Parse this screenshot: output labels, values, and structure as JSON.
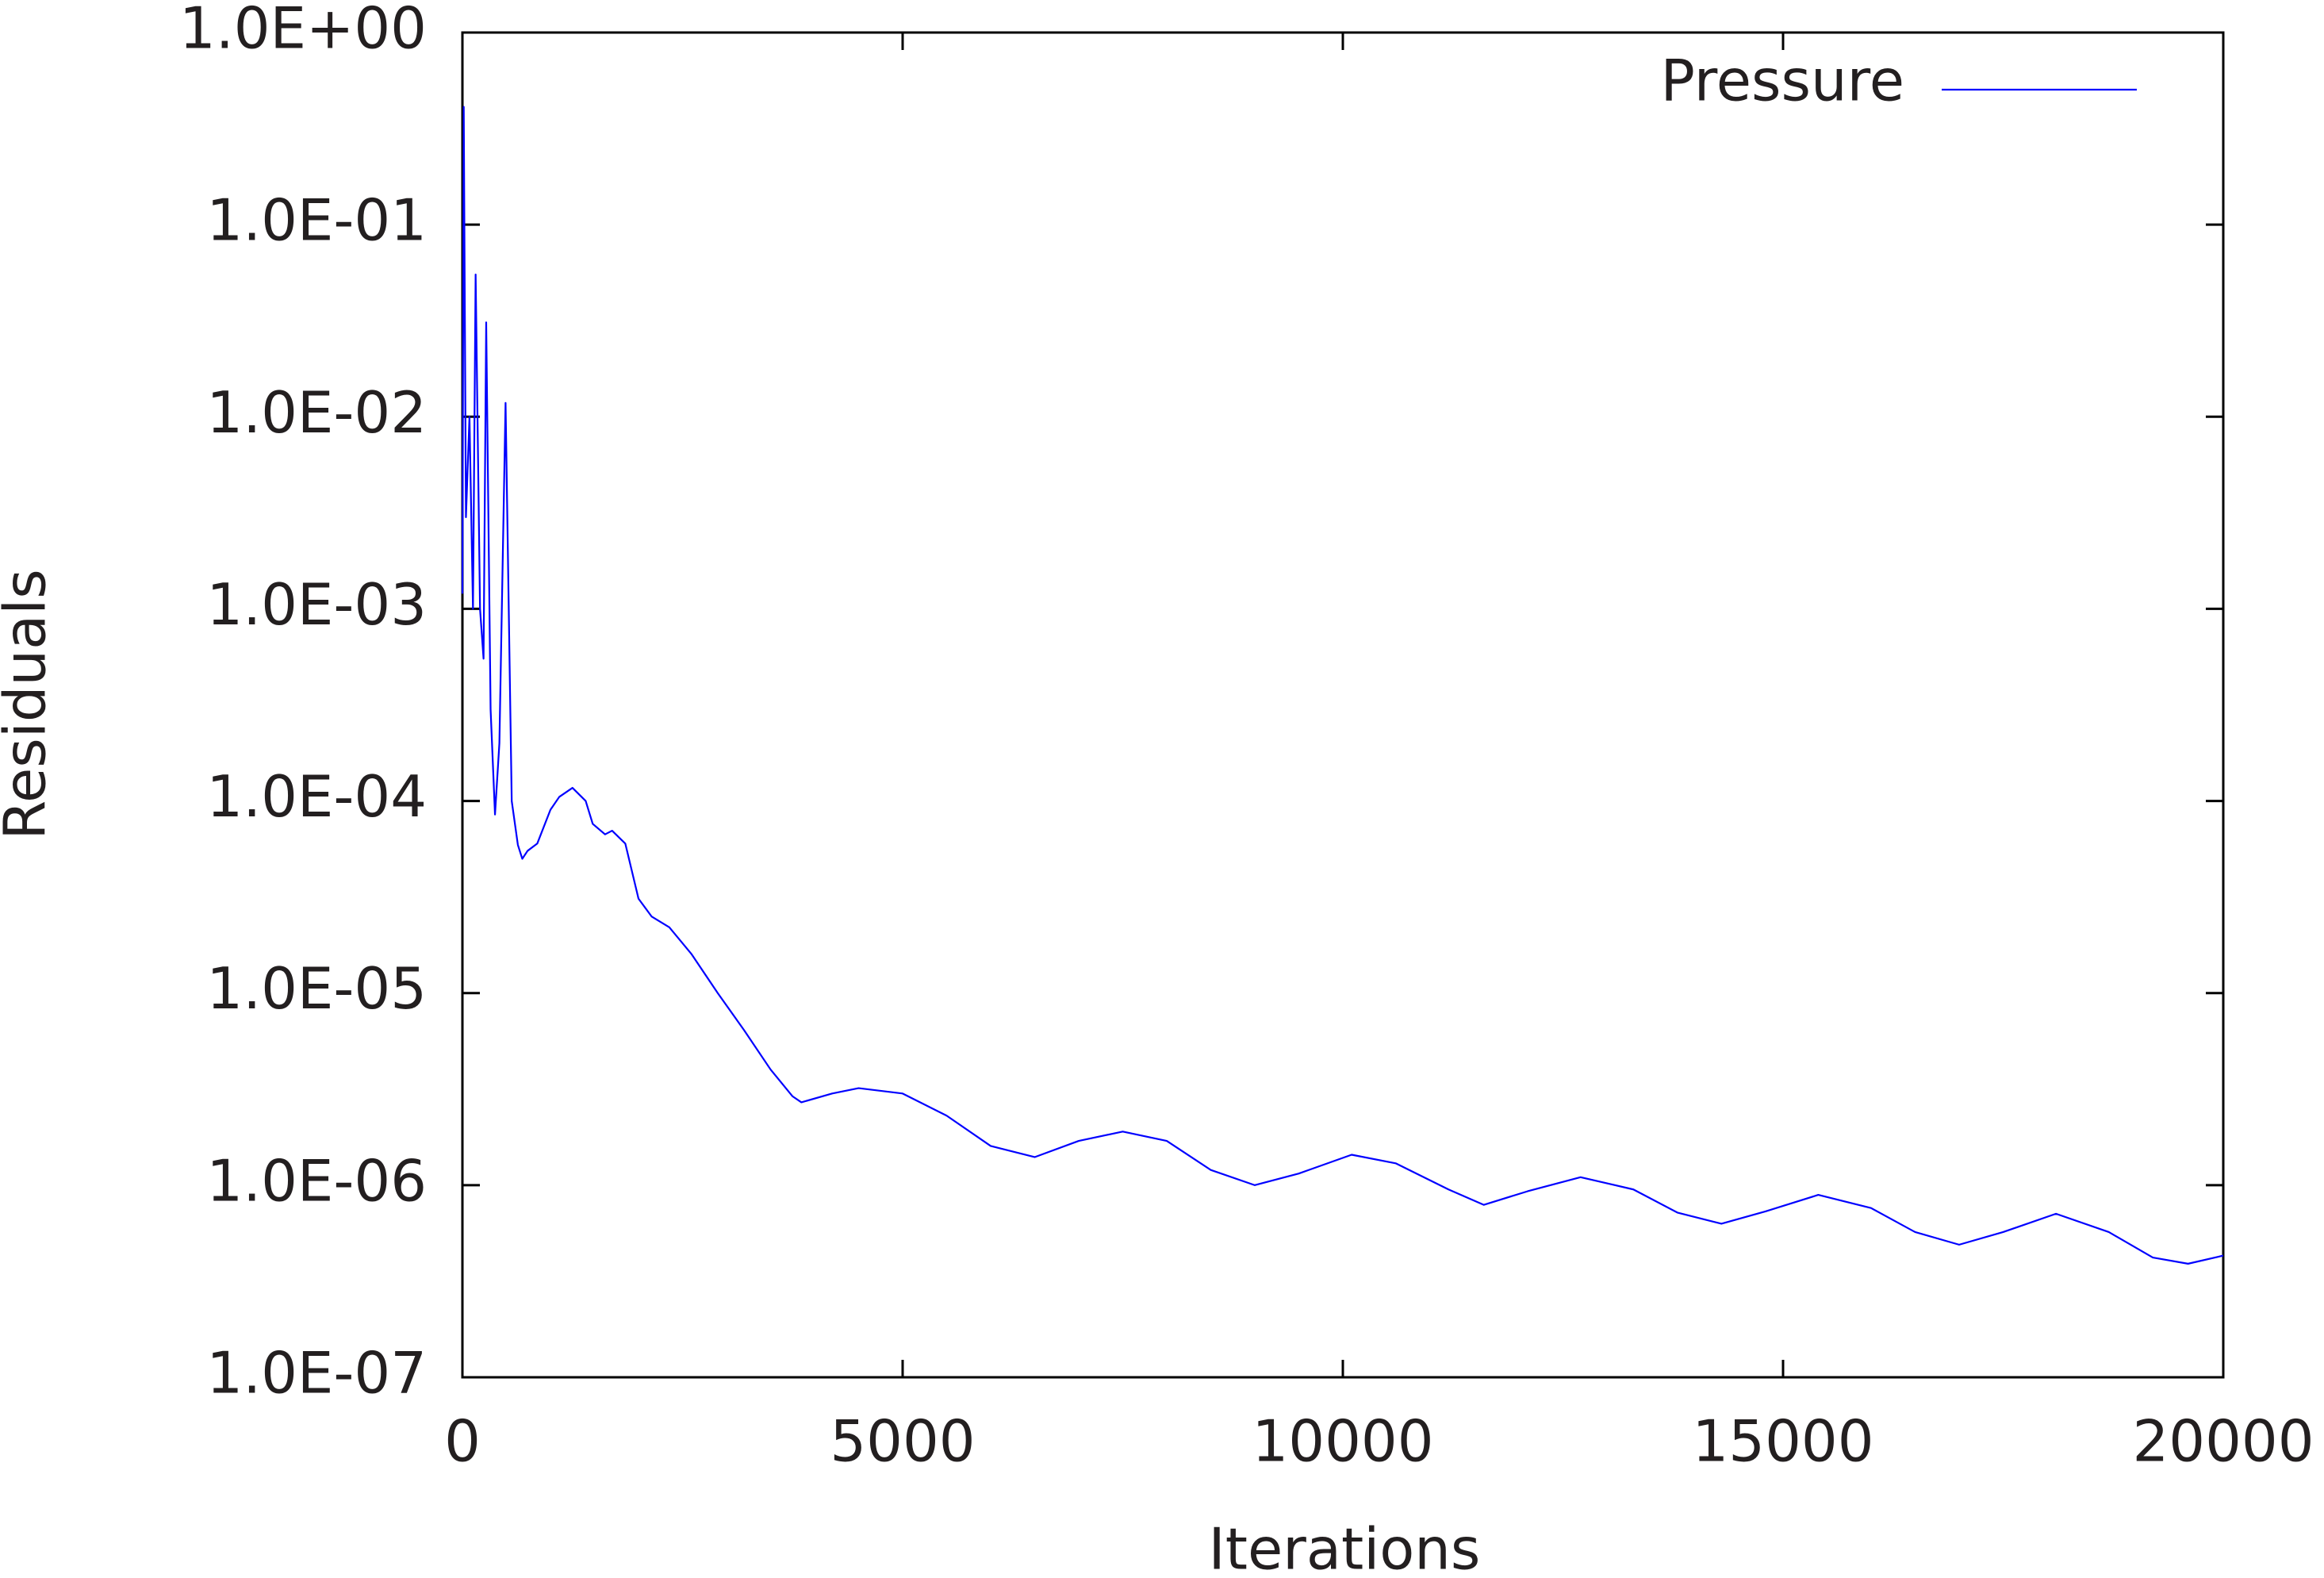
{
  "chart_data": {
    "type": "line",
    "x_label": "Iterations",
    "y_label": "Residuals",
    "yscale": "log",
    "xlim": [
      0,
      20000
    ],
    "xticks": [
      0,
      5000,
      10000,
      15000,
      20000
    ],
    "ylim": [
      1e-07,
      1
    ],
    "yticks": [
      {
        "value": 1e-07,
        "label": "1.0E-07"
      },
      {
        "value": 1e-06,
        "label": "1.0E-06"
      },
      {
        "value": 1e-05,
        "label": "1.0E-05"
      },
      {
        "value": 0.0001,
        "label": "1.0E-04"
      },
      {
        "value": 0.001,
        "label": "1.0E-03"
      },
      {
        "value": 0.01,
        "label": "1.0E-02"
      },
      {
        "value": 0.1,
        "label": "1.0E-01"
      },
      {
        "value": 1,
        "label": "1.0E+00"
      }
    ],
    "legend": "top-right",
    "series": [
      {
        "name": "Pressure",
        "color": "#0000ff",
        "x": [
          0,
          15,
          40,
          80,
          120,
          150,
          200,
          240,
          270,
          320,
          370,
          420,
          490,
          560,
          630,
          680,
          740,
          850,
          1000,
          1100,
          1250,
          1400,
          1480,
          1620,
          1700,
          1850,
          2000,
          2150,
          2350,
          2600,
          2900,
          3200,
          3500,
          3750,
          3850,
          4200,
          4500,
          5000,
          5500,
          6000,
          6500,
          7000,
          7500,
          8000,
          8500,
          9000,
          9500,
          10100,
          10600,
          11200,
          11600,
          12100,
          12700,
          13300,
          13800,
          14300,
          14800,
          15400,
          16000,
          16500,
          17000,
          17500,
          18100,
          18700,
          19200,
          19600,
          20000
        ],
        "values": [
          0.0012,
          0.41,
          0.003,
          0.01,
          0.001,
          0.055,
          0.001,
          0.00055,
          0.031,
          0.0003,
          8.5e-05,
          0.0002,
          0.0118,
          0.0001,
          5.9e-05,
          5e-05,
          5.5e-05,
          6e-05,
          9e-05,
          0.000105,
          0.000117,
          0.0001,
          7.6e-05,
          6.7e-05,
          7e-05,
          6e-05,
          3.1e-05,
          2.5e-05,
          2.2e-05,
          1.6e-05,
          1e-05,
          6.4e-06,
          4e-06,
          2.9e-06,
          2.7e-06,
          3e-06,
          3.2e-06,
          3e-06,
          2.3e-06,
          1.6e-06,
          1.4e-06,
          1.7e-06,
          1.9e-06,
          1.7e-06,
          1.2e-06,
          1e-06,
          1.15e-06,
          1.44e-06,
          1.3e-06,
          9.5e-07,
          7.9e-07,
          9.3e-07,
          1.1e-06,
          9.5e-07,
          7.2e-07,
          6.3e-07,
          7.3e-07,
          8.9e-07,
          7.6e-07,
          5.7e-07,
          4.9e-07,
          5.7e-07,
          7.1e-07,
          5.7e-07,
          4.2e-07,
          3.9e-07,
          4.3e-07
        ]
      }
    ]
  }
}
